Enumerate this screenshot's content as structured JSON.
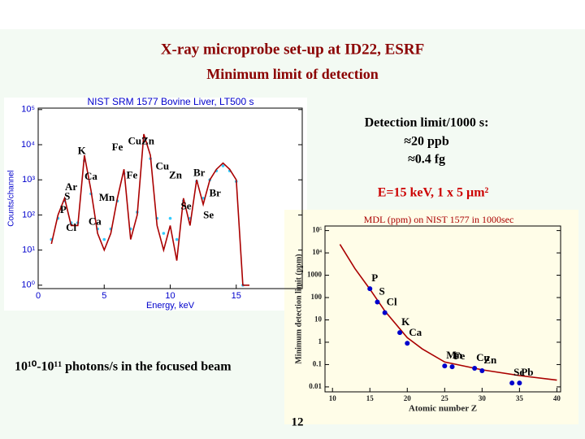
{
  "slide": {
    "title": "X-ray microprobe set-up at ID22, ESRF",
    "subtitle": "Minimum limit of detection",
    "notes": [
      "Detection limit/1000 s:",
      "≈20 ppb",
      "≈0.4 fg"
    ],
    "beam": "E=15 keV, 1 x 5 µm²",
    "flux": "10¹⁰-10¹¹ photons/s in the focused beam",
    "page": "12"
  },
  "chart_data": [
    {
      "type": "line",
      "title": "NIST SRM 1577 Bovine Liver, LT500 s",
      "xlabel": "Energy, keV",
      "ylabel": "Counts/channel",
      "log_y": true,
      "xlim": [
        0,
        20
      ],
      "xticks": [
        0,
        5,
        10,
        15
      ],
      "ylim": [
        0.8,
        110000
      ],
      "yticks": [
        {
          "value": 1,
          "label": "10⁰"
        },
        {
          "value": 10,
          "label": "10¹"
        },
        {
          "value": 100,
          "label": "10²"
        },
        {
          "value": 1000,
          "label": "10³"
        },
        {
          "value": 10000,
          "label": "10⁴"
        },
        {
          "value": 100000,
          "label": "10⁵"
        }
      ],
      "x": [
        1,
        1.5,
        2,
        2.5,
        3,
        3.5,
        4,
        4.5,
        5,
        5.5,
        6,
        6.5,
        7,
        7.5,
        8,
        8.5,
        9,
        9.5,
        10,
        10.5,
        11,
        11.5,
        12,
        12.5,
        13,
        13.5,
        14,
        14.5,
        15,
        15.5,
        16
      ],
      "series": [
        {
          "name": "measured",
          "mode": "markers",
          "color": "#33ccff",
          "values": [
            20,
            80,
            250,
            60,
            60,
            3500,
            400,
            40,
            20,
            40,
            250,
            1500,
            40,
            120,
            15000,
            4000,
            80,
            30,
            80,
            20,
            250,
            80,
            900,
            300,
            1000,
            1800,
            2500,
            1800,
            900,
            1,
            null
          ]
        },
        {
          "name": "fit",
          "mode": "line",
          "color": "#aa0000",
          "values": [
            15,
            100,
            300,
            50,
            50,
            5000,
            500,
            30,
            10,
            30,
            300,
            2000,
            20,
            100,
            20000,
            5000,
            50,
            10,
            50,
            5,
            300,
            50,
            1000,
            200,
            1000,
            2000,
            3000,
            2000,
            1000,
            1,
            1
          ]
        }
      ],
      "annotations": [
        {
          "text": "K",
          "x": 3.3,
          "y": 6300
        },
        {
          "text": "Fe",
          "x": 6.0,
          "y": 8000
        },
        {
          "text": "CuZn",
          "x": 7.8,
          "y": 12000
        },
        {
          "text": "Ca",
          "x": 4.0,
          "y": 1200
        },
        {
          "text": "Fe",
          "x": 7.1,
          "y": 1300
        },
        {
          "text": "Cu",
          "x": 9.4,
          "y": 2300
        },
        {
          "text": "Zn",
          "x": 10.4,
          "y": 1300
        },
        {
          "text": "Br",
          "x": 12.2,
          "y": 1500
        },
        {
          "text": "Ar",
          "x": 2.5,
          "y": 590
        },
        {
          "text": "S",
          "x": 2.2,
          "y": 320
        },
        {
          "text": "Mn",
          "x": 5.2,
          "y": 300
        },
        {
          "text": "Br",
          "x": 13.4,
          "y": 400
        },
        {
          "text": "Se",
          "x": 11.2,
          "y": 170
        },
        {
          "text": "P",
          "x": 1.9,
          "y": 135
        },
        {
          "text": "Se",
          "x": 12.9,
          "y": 95
        },
        {
          "text": "Cl",
          "x": 2.5,
          "y": 41
        },
        {
          "text": "Ca",
          "x": 4.3,
          "y": 62
        }
      ]
    },
    {
      "type": "scatter",
      "title": "MDL (ppm) on NIST 1577 in 1000sec",
      "xlabel": "Atomic number Z",
      "ylabel": "Minimum detection limit (ppm)",
      "log_y": true,
      "xlim": [
        9,
        40.5
      ],
      "xticks": [
        10,
        15,
        20,
        25,
        30,
        35,
        40
      ],
      "ylim": [
        0.006,
        160000
      ],
      "yticks": [
        0.01,
        0.1,
        1,
        10,
        100,
        1000,
        {
          "value": 10000,
          "label": "10⁴"
        },
        {
          "value": 100000,
          "label": "10⁵"
        }
      ],
      "series": [
        {
          "name": "fit",
          "mode": "line",
          "color": "#aa0000",
          "x": [
            11,
            13,
            15,
            17,
            20,
            22,
            25,
            30,
            35,
            40
          ],
          "values": [
            24000,
            2000,
            240,
            25,
            1.6,
            0.5,
            0.13,
            0.058,
            0.032,
            0.02
          ]
        },
        {
          "name": "elements",
          "mode": "markers",
          "color": "#0000cc",
          "x": [
            15,
            16,
            17,
            19,
            20,
            25,
            26,
            29,
            30,
            34,
            35
          ],
          "values": [
            250,
            63,
            21,
            2.7,
            0.9,
            0.087,
            0.08,
            0.068,
            0.053,
            0.015,
            0.015
          ],
          "labels": [
            "P",
            "S",
            "Cl",
            "K",
            "Ca",
            "Mn",
            "Fe",
            "Cu",
            "Zn",
            "Se",
            "Pb"
          ]
        }
      ]
    }
  ]
}
